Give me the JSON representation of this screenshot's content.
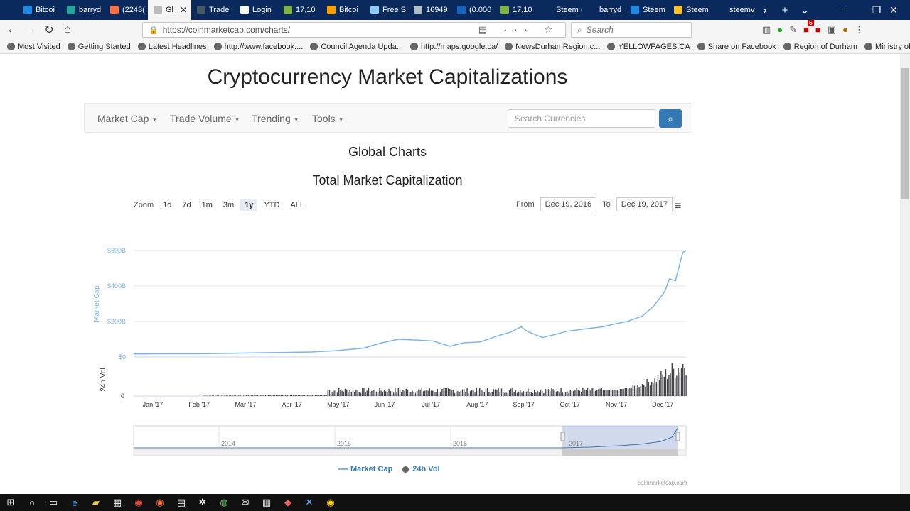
{
  "browser": {
    "tabs": [
      {
        "label": "Bitcoi",
        "color": "#1e88e5"
      },
      {
        "label": "barryd",
        "color": "#26a69a"
      },
      {
        "label": "(2243(",
        "color": "#ff7043"
      },
      {
        "label": "Gl",
        "color": "#bbbbbb",
        "active": true
      },
      {
        "label": "Trade",
        "color": "#455a64"
      },
      {
        "label": "Login",
        "color": "#ffffff"
      },
      {
        "label": "17,10",
        "color": "#7cb342"
      },
      {
        "label": "Bitcoi",
        "color": "#ffa000"
      },
      {
        "label": "Free S",
        "color": "#90caf9"
      },
      {
        "label": "16949",
        "color": "#b0bec5"
      },
      {
        "label": "(0.000",
        "color": "#1565c0"
      },
      {
        "label": "17,10",
        "color": "#7cb342"
      },
      {
        "label": "Steem (ST",
        "color": "#0a2a5e"
      },
      {
        "label": "barryd",
        "color": "#0a2a5e"
      },
      {
        "label": "Steem",
        "color": "#1e88e5"
      },
      {
        "label": "Steem",
        "color": "#fbc02d"
      },
      {
        "label": "steemviz.c",
        "color": "#0a2a5e"
      }
    ],
    "url": "https://coinmarketcap.com/charts/",
    "search_placeholder": "Search",
    "badge_count": "5",
    "bookmarks": [
      "Most Visited",
      "Getting Started",
      "Latest Headlines",
      "http://www.facebook....",
      "Council Agenda Upda...",
      "http://maps.google.ca/",
      "NewsDurhamRegion.c...",
      "YELLOWPAGES.CA",
      "Share on Facebook",
      "Region of Durham",
      "Ministry of Municipal ..."
    ]
  },
  "page": {
    "title": "Cryptocurrency Market Capitalizations",
    "nav": {
      "market_cap": "Market Cap",
      "trade_volume": "Trade Volume",
      "trending": "Trending",
      "tools": "Tools",
      "search_placeholder": "Search Currencies"
    },
    "section_title": "Global Charts",
    "chart_title": "Total Market Capitalization",
    "zoom": {
      "label": "Zoom",
      "options": [
        "1d",
        "7d",
        "1m",
        "3m",
        "1y",
        "YTD",
        "ALL"
      ],
      "selected": "1y"
    },
    "range": {
      "from_label": "From",
      "from": "Dec 19, 2016",
      "to_label": "To",
      "to": "Dec 19, 2017"
    },
    "legend": {
      "market_cap": "Market Cap",
      "volume": "24h Vol"
    },
    "credit": "coinmarketcap.com"
  },
  "chart_data": {
    "type": "line",
    "title": "Total Market Capitalization",
    "ylabel": "Market Cap",
    "ylabel2": "24h Vol",
    "y_ticks": [
      "$0",
      "$200B",
      "$400B",
      "$600B"
    ],
    "y2_ticks": [
      "0"
    ],
    "ylim": [
      0,
      600
    ],
    "x_ticks": [
      "Jan '17",
      "Feb '17",
      "Mar '17",
      "Apr '17",
      "May '17",
      "Jun '17",
      "Jul '17",
      "Aug '17",
      "Sep '17",
      "Oct '17",
      "Nov '17",
      "Dec '17"
    ],
    "navigator_ticks": [
      "2014",
      "2015",
      "2016",
      "2017"
    ],
    "series": [
      {
        "name": "Market Cap",
        "color": "#7cb5ec",
        "points": [
          [
            "2016-12-19",
            17
          ],
          [
            "2017-01-05",
            18
          ],
          [
            "2017-02-01",
            18
          ],
          [
            "2017-03-01",
            22
          ],
          [
            "2017-03-15",
            24
          ],
          [
            "2017-04-01",
            26
          ],
          [
            "2017-04-15",
            28
          ],
          [
            "2017-05-01",
            35
          ],
          [
            "2017-05-20",
            50
          ],
          [
            "2017-06-01",
            80
          ],
          [
            "2017-06-12",
            100
          ],
          [
            "2017-06-25",
            95
          ],
          [
            "2017-07-05",
            90
          ],
          [
            "2017-07-16",
            60
          ],
          [
            "2017-07-25",
            80
          ],
          [
            "2017-08-05",
            85
          ],
          [
            "2017-08-15",
            115
          ],
          [
            "2017-08-25",
            140
          ],
          [
            "2017-09-01",
            170
          ],
          [
            "2017-09-05",
            145
          ],
          [
            "2017-09-15",
            110
          ],
          [
            "2017-09-25",
            130
          ],
          [
            "2017-10-01",
            145
          ],
          [
            "2017-10-15",
            160
          ],
          [
            "2017-10-25",
            170
          ],
          [
            "2017-11-01",
            185
          ],
          [
            "2017-11-10",
            200
          ],
          [
            "2017-11-20",
            230
          ],
          [
            "2017-11-28",
            290
          ],
          [
            "2017-12-05",
            370
          ],
          [
            "2017-12-08",
            440
          ],
          [
            "2017-12-12",
            430
          ],
          [
            "2017-12-15",
            530
          ],
          [
            "2017-12-17",
            590
          ],
          [
            "2017-12-19",
            600
          ]
        ]
      },
      {
        "name": "24h Vol",
        "color": "#434348"
      }
    ]
  }
}
